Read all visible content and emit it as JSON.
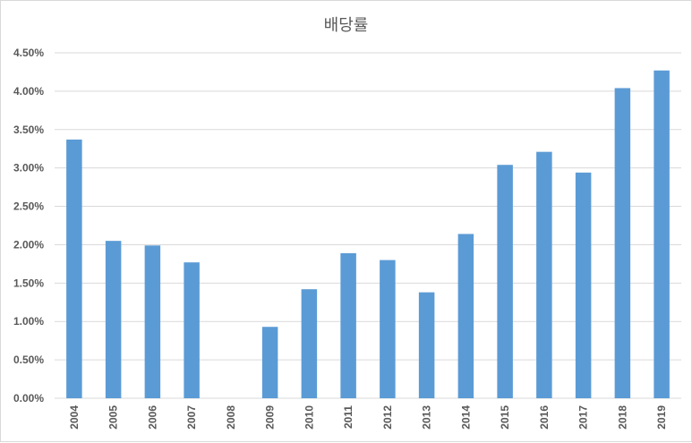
{
  "chart_data": {
    "type": "bar",
    "title": "배당률",
    "xlabel": "",
    "ylabel": "",
    "categories": [
      "2004",
      "2005",
      "2006",
      "2007",
      "2008",
      "2009",
      "2010",
      "2011",
      "2012",
      "2013",
      "2014",
      "2015",
      "2016",
      "2017",
      "2018",
      "2019"
    ],
    "series": [
      {
        "values": [
          3.37,
          2.05,
          1.99,
          1.77,
          0,
          0.93,
          1.42,
          1.89,
          1.8,
          1.38,
          2.14,
          3.04,
          3.21,
          2.94,
          4.04,
          4.27
        ]
      }
    ],
    "ylim": [
      0,
      4.5
    ],
    "yticks": [
      "0.00%",
      "0.50%",
      "1.00%",
      "1.50%",
      "2.00%",
      "2.50%",
      "3.00%",
      "3.50%",
      "4.00%",
      "4.50%"
    ],
    "grid": true,
    "legend": "none",
    "bar_color": "#5b9bd5"
  }
}
